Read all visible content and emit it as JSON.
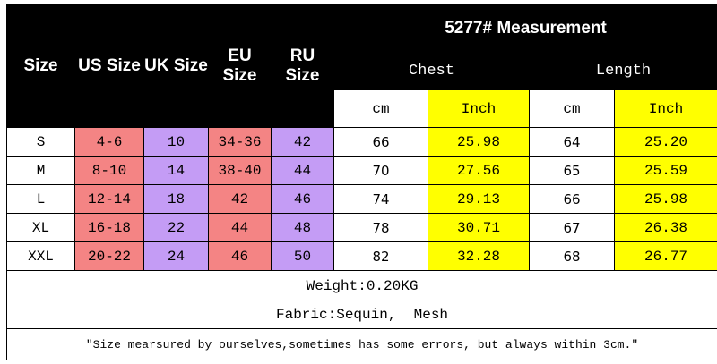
{
  "header": {
    "size": "Size",
    "us": "US Size",
    "uk": "UK Size",
    "eu": "EU Size",
    "ru": "RU Size",
    "measurement": "5277# Measurement",
    "chest": "Chest",
    "length": "Length",
    "chest_cm": "cm",
    "chest_inch": "Inch",
    "length_cm": "cm",
    "length_inch": "Inch"
  },
  "rows": [
    [
      "S",
      "4-6",
      "10",
      "34-36",
      "42",
      "66",
      "25.98",
      "64",
      "25.20"
    ],
    [
      "M",
      "8-10",
      "14",
      "38-40",
      "44",
      "70",
      "27.56",
      "65",
      "25.59"
    ],
    [
      "L",
      "12-14",
      "18",
      "42",
      "46",
      "74",
      "29.13",
      "66",
      "25.98"
    ],
    [
      "XL",
      "16-18",
      "22",
      "44",
      "48",
      "78",
      "30.71",
      "67",
      "26.38"
    ],
    [
      "XXL",
      "20-22",
      "24",
      "46",
      "50",
      "82",
      "32.28",
      "68",
      "26.77"
    ]
  ],
  "weight": "Weight:0.20KG",
  "fabric": "Fabric:Sequin,  Mesh",
  "note": "\"Size mearsured by ourselves,sometimes has some errors, but always within 3cm.\""
}
